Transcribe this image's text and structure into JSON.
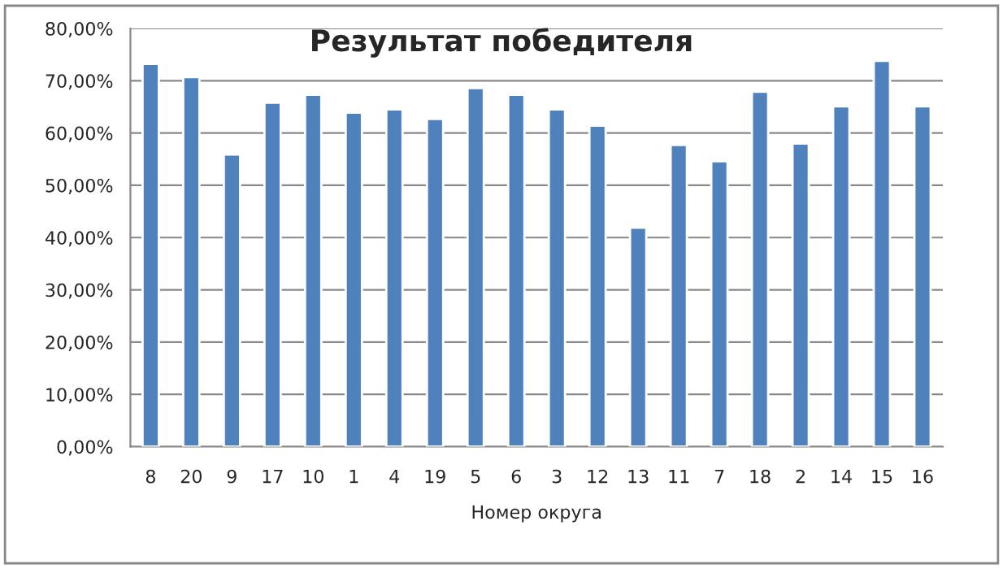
{
  "chart_data": {
    "type": "bar",
    "title": "Результат победителя",
    "xlabel": "Номер округа",
    "categories": [
      "8",
      "20",
      "9",
      "17",
      "10",
      "1",
      "4",
      "19",
      "5",
      "6",
      "3",
      "12",
      "13",
      "11",
      "7",
      "18",
      "2",
      "14",
      "15",
      "16"
    ],
    "values": [
      73.2,
      70.7,
      55.9,
      65.8,
      67.3,
      63.9,
      64.5,
      62.7,
      68.6,
      67.3,
      64.5,
      61.4,
      41.9,
      57.7,
      54.6,
      67.9,
      58.0,
      65.1,
      73.8,
      65.1
    ],
    "color": "#4f81bd",
    "ylim": [
      0,
      80
    ],
    "yticks": [
      {
        "value": 0,
        "label": "0,00%"
      },
      {
        "value": 10,
        "label": "10,00%"
      },
      {
        "value": 20,
        "label": "20,00%"
      },
      {
        "value": 30,
        "label": "30,00%"
      },
      {
        "value": 40,
        "label": "40,00%"
      },
      {
        "value": 50,
        "label": "50,00%"
      },
      {
        "value": 60,
        "label": "60,00%"
      },
      {
        "value": 70,
        "label": "70,00%"
      },
      {
        "value": 80,
        "label": "80,00%"
      }
    ],
    "grid": "y",
    "legend": false
  }
}
